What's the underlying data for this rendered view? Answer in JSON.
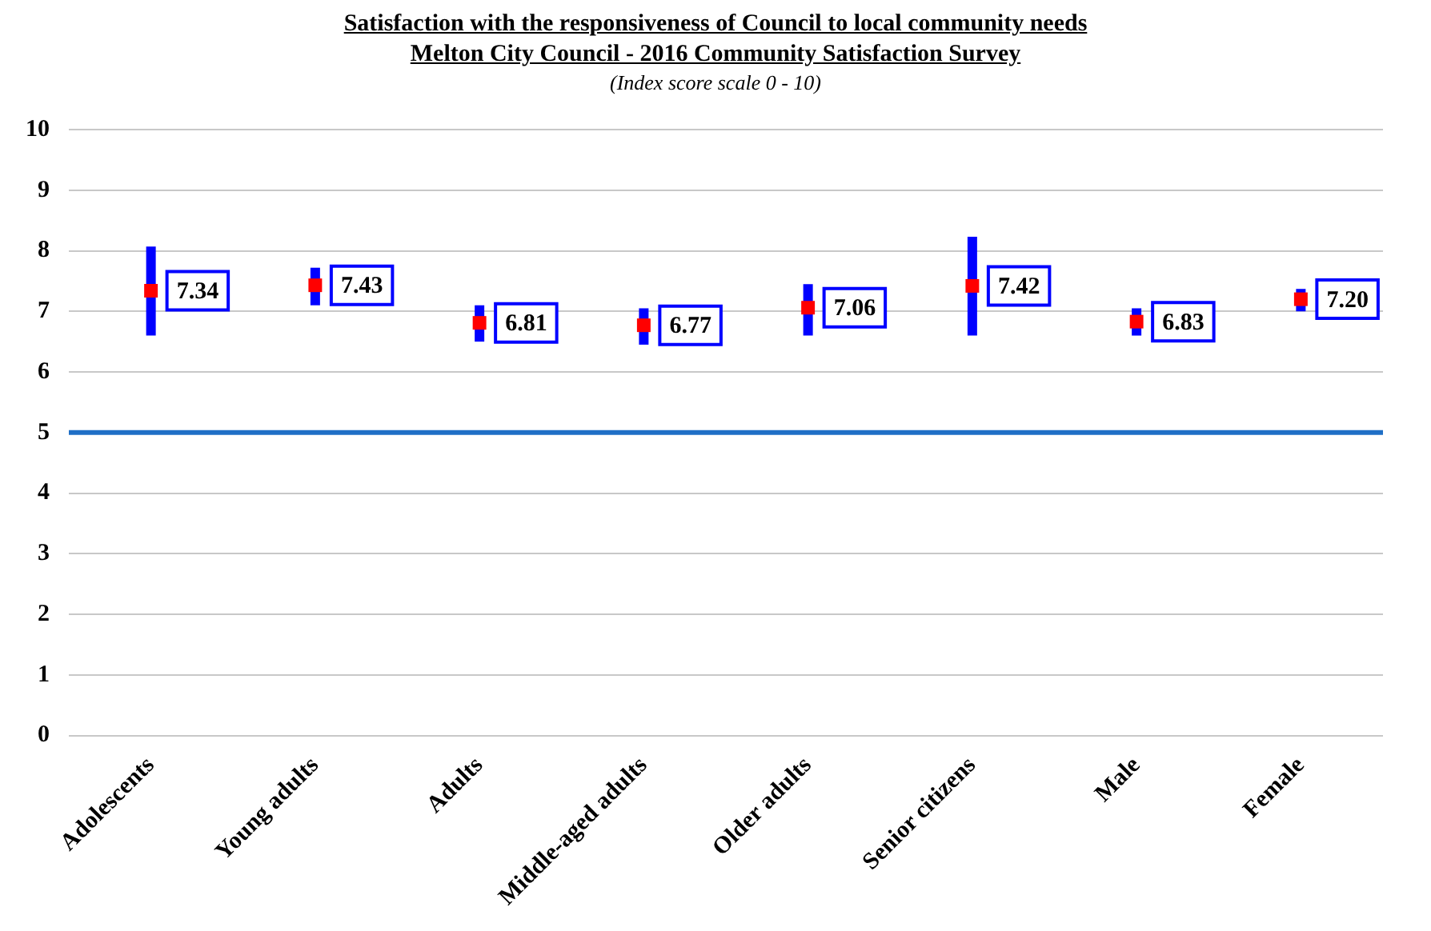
{
  "chart_data": {
    "type": "scatter",
    "title": "Satisfaction with the responsiveness of Council to local community needs\nMelton City Council - 2016 Community Satisfaction Survey",
    "subtitle": "(Index score scale 0 - 10)",
    "categories": [
      "Adolescents",
      "Young adults",
      "Adults",
      "Middle-aged adults",
      "Older adults",
      "Senior citizens",
      "Male",
      "Female"
    ],
    "values": [
      7.34,
      7.43,
      6.81,
      6.77,
      7.06,
      7.42,
      6.83,
      7.2
    ],
    "value_labels": [
      "7.34",
      "7.43",
      "6.81",
      "6.77",
      "7.06",
      "7.42",
      "6.83",
      "7.20"
    ],
    "errors": [
      [
        6.6,
        8.07
      ],
      [
        7.1,
        7.72
      ],
      [
        6.5,
        7.1
      ],
      [
        6.45,
        7.05
      ],
      [
        6.6,
        7.45
      ],
      [
        6.6,
        8.23
      ],
      [
        6.6,
        7.05
      ],
      [
        7.0,
        7.37
      ]
    ],
    "color": "#ff0000",
    "marker": "square",
    "ylim": [
      0,
      10
    ],
    "yticks": [
      0,
      1,
      2,
      3,
      4,
      5,
      6,
      7,
      8,
      9,
      10
    ],
    "grid": "y",
    "legend": false,
    "ref_lines": [
      {
        "axis": "y",
        "value": 5,
        "label": null,
        "color": "#1f6fc6"
      }
    ]
  }
}
